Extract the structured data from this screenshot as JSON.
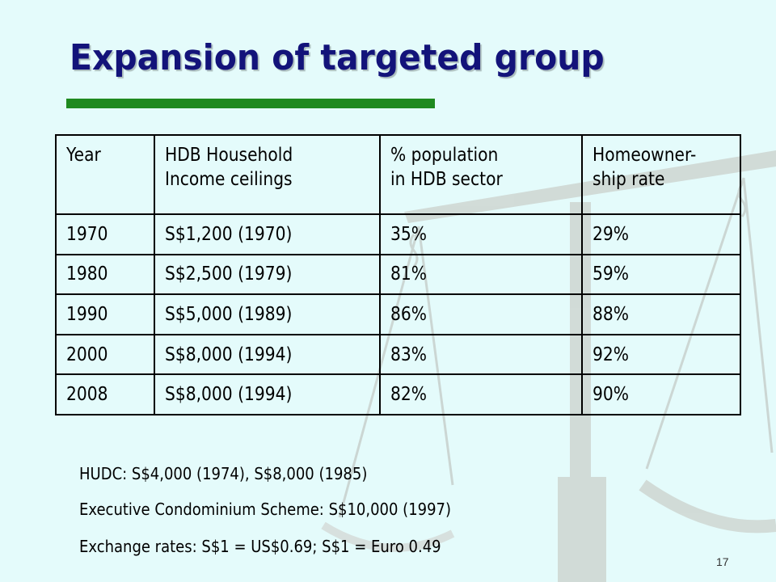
{
  "slide": {
    "title": "Expansion of targeted group",
    "page_number": "17"
  },
  "table": {
    "headers": [
      "Year",
      "HDB Household Income ceilings",
      "% population in HDB sector",
      "Homeowner-ship rate"
    ],
    "header_lines": [
      [
        "Year"
      ],
      [
        "HDB Household",
        "Income ceilings"
      ],
      [
        "% population",
        "in HDB sector"
      ],
      [
        "Homeowner-",
        "ship rate"
      ]
    ],
    "rows": [
      [
        "1970",
        "S$1,200 (1970)",
        "35%",
        "29%"
      ],
      [
        "1980",
        "S$2,500 (1979)",
        "81%",
        "59%"
      ],
      [
        "1990",
        "S$5,000 (1989)",
        "86%",
        "88%"
      ],
      [
        "2000",
        "S$8,000 (1994)",
        "83%",
        "92%"
      ],
      [
        "2008",
        "S$8,000 (1994)",
        "82%",
        "90%"
      ]
    ]
  },
  "notes": [
    "HUDC: S$4,000 (1974), S$8,000 (1985)",
    "Executive Condominium Scheme: S$10,000 (1997)",
    "Exchange rates: S$1 = US$0.69; S$1 = Euro 0.49"
  ],
  "colors": {
    "background": "#e4fbfb",
    "title": "#13137a",
    "underline": "#1f8a1f",
    "watermark": "#c9d3cf"
  },
  "icons": [
    "balance-scale-watermark"
  ]
}
